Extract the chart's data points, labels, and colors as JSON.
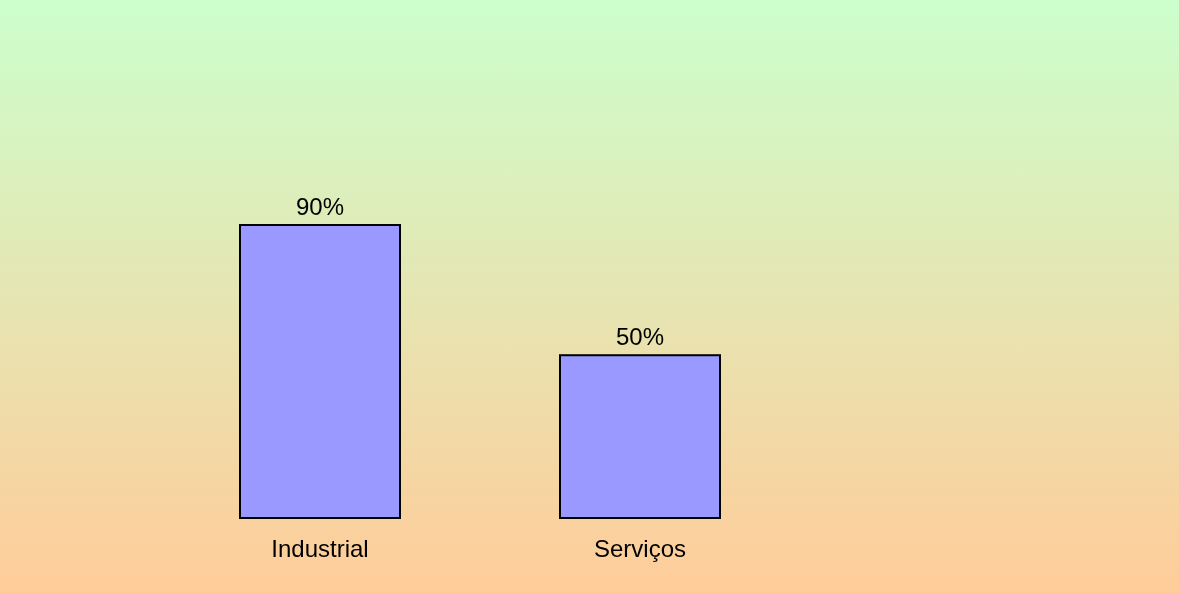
{
  "chart_data": {
    "type": "bar",
    "categories": [
      "Industrial",
      "Serviços"
    ],
    "values": [
      90,
      50
    ],
    "color": "#9999ff",
    "value_labels": [
      "90%",
      "50%"
    ]
  }
}
